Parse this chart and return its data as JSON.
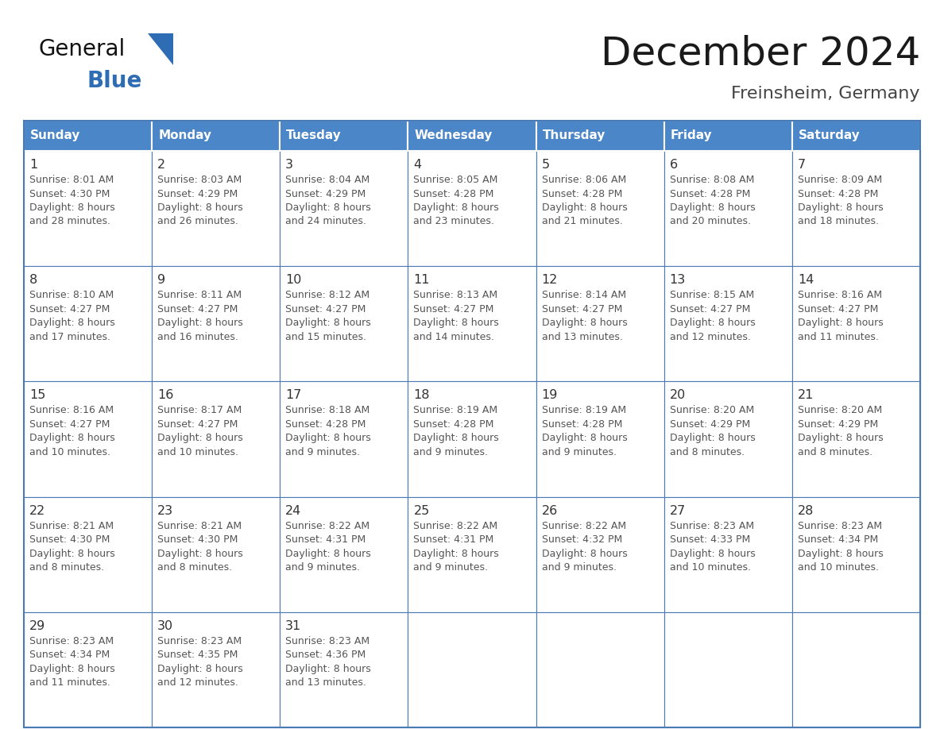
{
  "title": "December 2024",
  "subtitle": "Freinsheim, Germany",
  "days_of_week": [
    "Sunday",
    "Monday",
    "Tuesday",
    "Wednesday",
    "Thursday",
    "Friday",
    "Saturday"
  ],
  "header_bg": "#4a86c8",
  "header_text": "#ffffff",
  "cell_border": "#4a7ab5",
  "day_num_color": "#333333",
  "content_color": "#555555",
  "bg_color": "#ffffff",
  "title_color": "#1a1a1a",
  "subtitle_color": "#444444",
  "logo_general_color": "#111111",
  "logo_blue_color": "#2e6db4",
  "weeks": [
    [
      {
        "day": 1,
        "sunrise": "8:01 AM",
        "sunset": "4:30 PM",
        "daylight_line1": "Daylight: 8 hours",
        "daylight_line2": "and 28 minutes."
      },
      {
        "day": 2,
        "sunrise": "8:03 AM",
        "sunset": "4:29 PM",
        "daylight_line1": "Daylight: 8 hours",
        "daylight_line2": "and 26 minutes."
      },
      {
        "day": 3,
        "sunrise": "8:04 AM",
        "sunset": "4:29 PM",
        "daylight_line1": "Daylight: 8 hours",
        "daylight_line2": "and 24 minutes."
      },
      {
        "day": 4,
        "sunrise": "8:05 AM",
        "sunset": "4:28 PM",
        "daylight_line1": "Daylight: 8 hours",
        "daylight_line2": "and 23 minutes."
      },
      {
        "day": 5,
        "sunrise": "8:06 AM",
        "sunset": "4:28 PM",
        "daylight_line1": "Daylight: 8 hours",
        "daylight_line2": "and 21 minutes."
      },
      {
        "day": 6,
        "sunrise": "8:08 AM",
        "sunset": "4:28 PM",
        "daylight_line1": "Daylight: 8 hours",
        "daylight_line2": "and 20 minutes."
      },
      {
        "day": 7,
        "sunrise": "8:09 AM",
        "sunset": "4:28 PM",
        "daylight_line1": "Daylight: 8 hours",
        "daylight_line2": "and 18 minutes."
      }
    ],
    [
      {
        "day": 8,
        "sunrise": "8:10 AM",
        "sunset": "4:27 PM",
        "daylight_line1": "Daylight: 8 hours",
        "daylight_line2": "and 17 minutes."
      },
      {
        "day": 9,
        "sunrise": "8:11 AM",
        "sunset": "4:27 PM",
        "daylight_line1": "Daylight: 8 hours",
        "daylight_line2": "and 16 minutes."
      },
      {
        "day": 10,
        "sunrise": "8:12 AM",
        "sunset": "4:27 PM",
        "daylight_line1": "Daylight: 8 hours",
        "daylight_line2": "and 15 minutes."
      },
      {
        "day": 11,
        "sunrise": "8:13 AM",
        "sunset": "4:27 PM",
        "daylight_line1": "Daylight: 8 hours",
        "daylight_line2": "and 14 minutes."
      },
      {
        "day": 12,
        "sunrise": "8:14 AM",
        "sunset": "4:27 PM",
        "daylight_line1": "Daylight: 8 hours",
        "daylight_line2": "and 13 minutes."
      },
      {
        "day": 13,
        "sunrise": "8:15 AM",
        "sunset": "4:27 PM",
        "daylight_line1": "Daylight: 8 hours",
        "daylight_line2": "and 12 minutes."
      },
      {
        "day": 14,
        "sunrise": "8:16 AM",
        "sunset": "4:27 PM",
        "daylight_line1": "Daylight: 8 hours",
        "daylight_line2": "and 11 minutes."
      }
    ],
    [
      {
        "day": 15,
        "sunrise": "8:16 AM",
        "sunset": "4:27 PM",
        "daylight_line1": "Daylight: 8 hours",
        "daylight_line2": "and 10 minutes."
      },
      {
        "day": 16,
        "sunrise": "8:17 AM",
        "sunset": "4:27 PM",
        "daylight_line1": "Daylight: 8 hours",
        "daylight_line2": "and 10 minutes."
      },
      {
        "day": 17,
        "sunrise": "8:18 AM",
        "sunset": "4:28 PM",
        "daylight_line1": "Daylight: 8 hours",
        "daylight_line2": "and 9 minutes."
      },
      {
        "day": 18,
        "sunrise": "8:19 AM",
        "sunset": "4:28 PM",
        "daylight_line1": "Daylight: 8 hours",
        "daylight_line2": "and 9 minutes."
      },
      {
        "day": 19,
        "sunrise": "8:19 AM",
        "sunset": "4:28 PM",
        "daylight_line1": "Daylight: 8 hours",
        "daylight_line2": "and 9 minutes."
      },
      {
        "day": 20,
        "sunrise": "8:20 AM",
        "sunset": "4:29 PM",
        "daylight_line1": "Daylight: 8 hours",
        "daylight_line2": "and 8 minutes."
      },
      {
        "day": 21,
        "sunrise": "8:20 AM",
        "sunset": "4:29 PM",
        "daylight_line1": "Daylight: 8 hours",
        "daylight_line2": "and 8 minutes."
      }
    ],
    [
      {
        "day": 22,
        "sunrise": "8:21 AM",
        "sunset": "4:30 PM",
        "daylight_line1": "Daylight: 8 hours",
        "daylight_line2": "and 8 minutes."
      },
      {
        "day": 23,
        "sunrise": "8:21 AM",
        "sunset": "4:30 PM",
        "daylight_line1": "Daylight: 8 hours",
        "daylight_line2": "and 8 minutes."
      },
      {
        "day": 24,
        "sunrise": "8:22 AM",
        "sunset": "4:31 PM",
        "daylight_line1": "Daylight: 8 hours",
        "daylight_line2": "and 9 minutes."
      },
      {
        "day": 25,
        "sunrise": "8:22 AM",
        "sunset": "4:31 PM",
        "daylight_line1": "Daylight: 8 hours",
        "daylight_line2": "and 9 minutes."
      },
      {
        "day": 26,
        "sunrise": "8:22 AM",
        "sunset": "4:32 PM",
        "daylight_line1": "Daylight: 8 hours",
        "daylight_line2": "and 9 minutes."
      },
      {
        "day": 27,
        "sunrise": "8:23 AM",
        "sunset": "4:33 PM",
        "daylight_line1": "Daylight: 8 hours",
        "daylight_line2": "and 10 minutes."
      },
      {
        "day": 28,
        "sunrise": "8:23 AM",
        "sunset": "4:34 PM",
        "daylight_line1": "Daylight: 8 hours",
        "daylight_line2": "and 10 minutes."
      }
    ],
    [
      {
        "day": 29,
        "sunrise": "8:23 AM",
        "sunset": "4:34 PM",
        "daylight_line1": "Daylight: 8 hours",
        "daylight_line2": "and 11 minutes."
      },
      {
        "day": 30,
        "sunrise": "8:23 AM",
        "sunset": "4:35 PM",
        "daylight_line1": "Daylight: 8 hours",
        "daylight_line2": "and 12 minutes."
      },
      {
        "day": 31,
        "sunrise": "8:23 AM",
        "sunset": "4:36 PM",
        "daylight_line1": "Daylight: 8 hours",
        "daylight_line2": "and 13 minutes."
      },
      null,
      null,
      null,
      null
    ]
  ]
}
